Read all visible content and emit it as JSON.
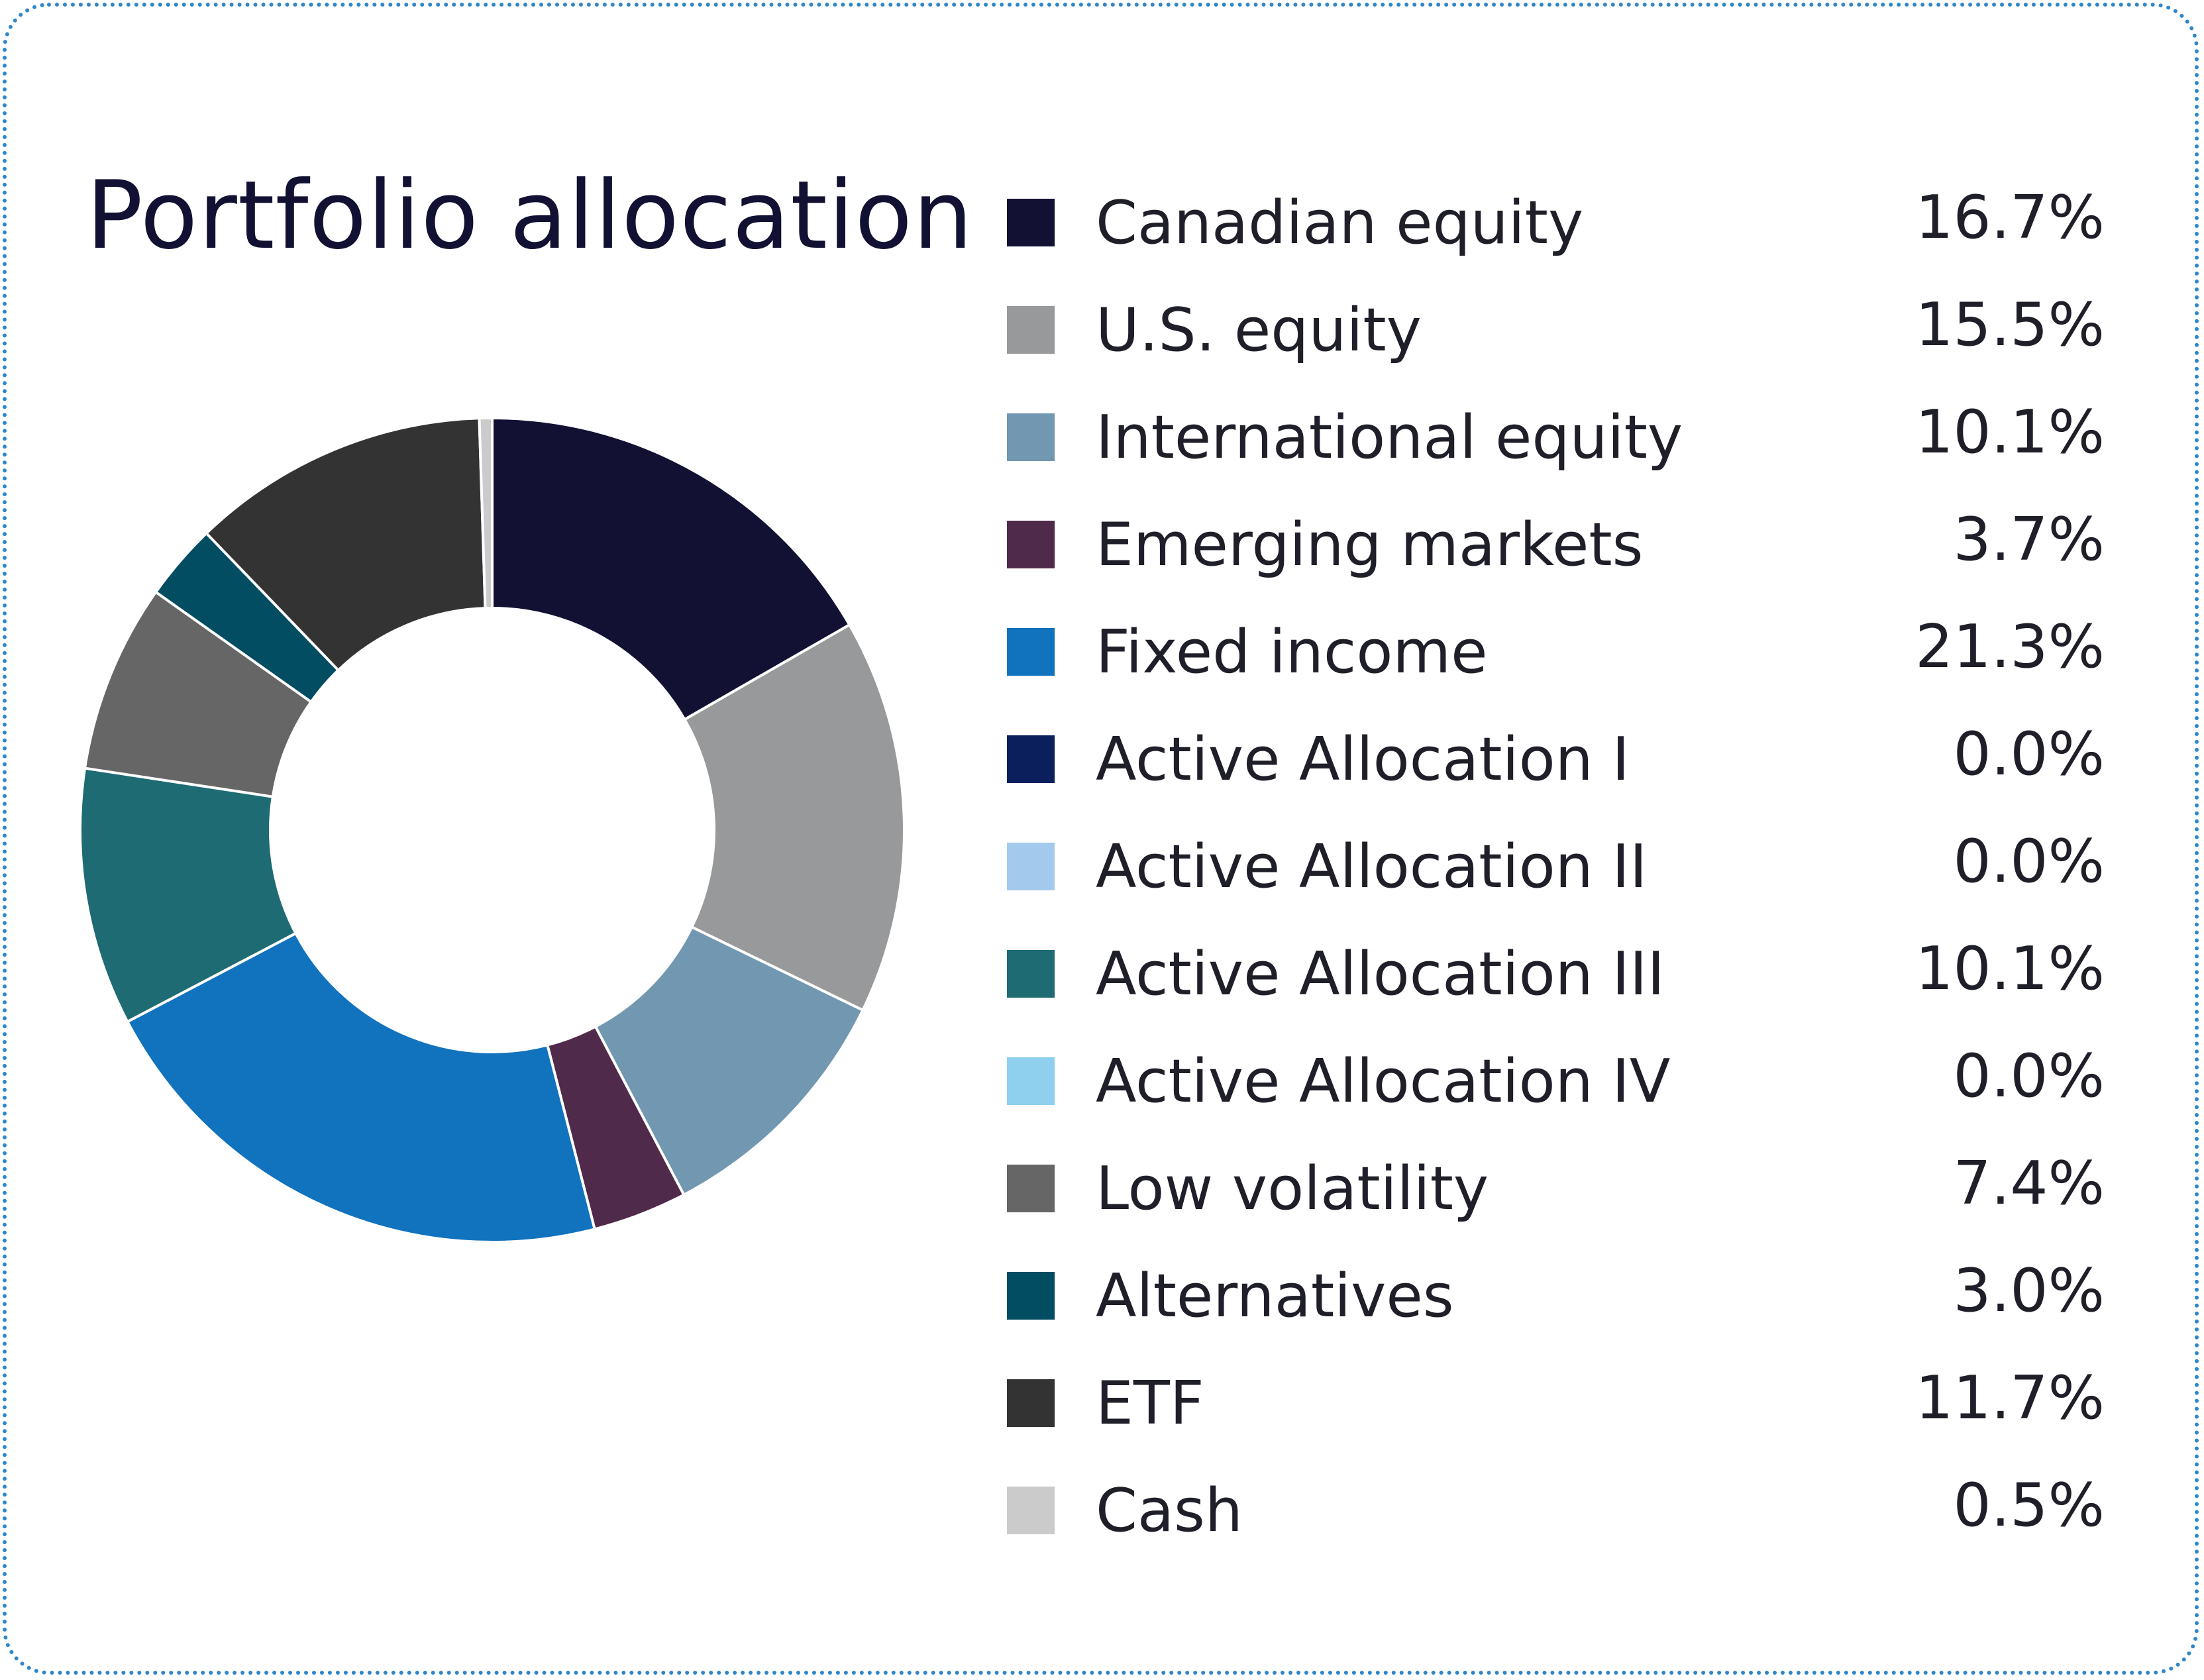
{
  "chart_data": {
    "type": "pie",
    "title": "Portfolio allocation",
    "categories": [
      "Canadian equity",
      "U.S. equity",
      "International equity",
      "Emerging markets",
      "Fixed income",
      "Active Allocation I",
      "Active Allocation II",
      "Active Allocation III",
      "Active Allocation IV",
      "Low volatility",
      "Alternatives",
      "ETF",
      "Cash"
    ],
    "values": [
      16.7,
      15.5,
      10.1,
      3.7,
      21.3,
      0.0,
      0.0,
      10.1,
      0.0,
      7.4,
      3.0,
      11.7,
      0.5
    ],
    "value_labels": [
      "16.7%",
      "15.5%",
      "10.1%",
      "3.7%",
      "21.3%",
      "0.0%",
      "0.0%",
      "10.1%",
      "0.0%",
      "7.4%",
      "3.0%",
      "11.7%",
      "0.5%"
    ],
    "colors": [
      "#121133",
      "#98999b",
      "#7297b0",
      "#502a4a",
      "#1172bd",
      "#0a1f5c",
      "#a3caed",
      "#1f6b74",
      "#8ed0ee",
      "#666666",
      "#034d63",
      "#333333",
      "#cbcbcb"
    ],
    "legend_position": "right",
    "donut": true
  }
}
